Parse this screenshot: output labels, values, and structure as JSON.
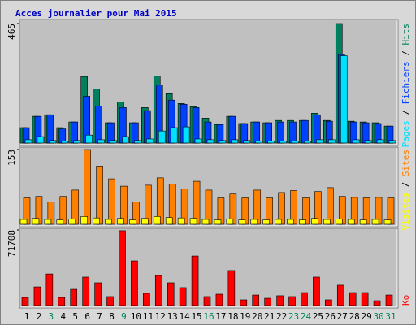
{
  "chart_data": [
    {
      "type": "bar",
      "title": "Acces journalier pour Mai 2015",
      "legend_separator": " / ",
      "ylim": [
        0,
        465
      ],
      "yticks": [
        465
      ],
      "series": [
        {
          "name": "Hits",
          "color": "#00805c",
          "values": [
            60,
            104,
            110,
            60,
            82,
            258,
            210,
            79,
            160,
            79,
            138,
            261,
            192,
            154,
            141,
            97,
            72,
            104,
            76,
            82,
            79,
            88,
            88,
            88,
            116,
            88,
            465,
            85,
            82,
            79,
            66
          ]
        },
        {
          "name": "Fichiers",
          "color": "#0040ff",
          "values": [
            60,
            104,
            110,
            55,
            82,
            182,
            144,
            79,
            138,
            79,
            126,
            226,
            167,
            151,
            138,
            82,
            72,
            104,
            76,
            82,
            79,
            82,
            82,
            88,
            110,
            85,
            345,
            82,
            79,
            76,
            66
          ]
        },
        {
          "name": "Pages",
          "color": "#00e0ff",
          "values": [
            13,
            25,
            10,
            8,
            10,
            31,
            13,
            10,
            25,
            10,
            16,
            47,
            60,
            63,
            16,
            13,
            10,
            13,
            10,
            8,
            8,
            8,
            8,
            8,
            13,
            13,
            340,
            13,
            10,
            13,
            10
          ]
        }
      ]
    },
    {
      "type": "bar",
      "legend_separator": " / ",
      "ylim": [
        0,
        153
      ],
      "yticks": [
        153
      ],
      "series": [
        {
          "name": "Sites",
          "color": "#ff8000",
          "values": [
            54,
            57,
            46,
            57,
            70,
            153,
            119,
            93,
            78,
            46,
            80,
            95,
            82,
            72,
            88,
            70,
            54,
            62,
            54,
            70,
            54,
            65,
            69,
            54,
            67,
            75,
            57,
            55,
            54,
            55,
            54
          ]
        },
        {
          "name": "Visites",
          "color": "#ffff00",
          "values": [
            10,
            12,
            10,
            9,
            11,
            16,
            13,
            10,
            12,
            9,
            12,
            16,
            14,
            13,
            12,
            10,
            9,
            11,
            9,
            10,
            9,
            10,
            10,
            9,
            12,
            10,
            11,
            10,
            9,
            10,
            9
          ]
        }
      ]
    },
    {
      "type": "bar",
      "ylim": [
        0,
        71708
      ],
      "yticks": [
        71708
      ],
      "categories": [
        "1",
        "2",
        "3",
        "4",
        "5",
        "6",
        "7",
        "8",
        "9",
        "10",
        "11",
        "12",
        "13",
        "14",
        "15",
        "16",
        "17",
        "18",
        "19",
        "20",
        "21",
        "22",
        "23",
        "24",
        "25",
        "26",
        "27",
        "28",
        "29",
        "30",
        "31"
      ],
      "category_colors": [
        "#000000",
        "#000000",
        "#00805c",
        "#000000",
        "#000000",
        "#000000",
        "#000000",
        "#000000",
        "#00805c",
        "#000000",
        "#000000",
        "#000000",
        "#000000",
        "#000000",
        "#000000",
        "#00805c",
        "#000000",
        "#000000",
        "#000000",
        "#000000",
        "#000000",
        "#000000",
        "#00805c",
        "#00805c",
        "#000000",
        "#000000",
        "#000000",
        "#000000",
        "#000000",
        "#00805c",
        "#00805c"
      ],
      "series": [
        {
          "name": "Ko",
          "color": "#ff0000",
          "values": [
            7700,
            17700,
            30000,
            7700,
            15400,
            27000,
            21600,
            8500,
            71000,
            42400,
            11600,
            28500,
            21600,
            17000,
            47000,
            8500,
            10800,
            33200,
            5400,
            10000,
            6900,
            9300,
            8500,
            12300,
            27000,
            5400,
            19300,
            12300,
            12300,
            4600,
            10000
          ]
        }
      ]
    }
  ]
}
